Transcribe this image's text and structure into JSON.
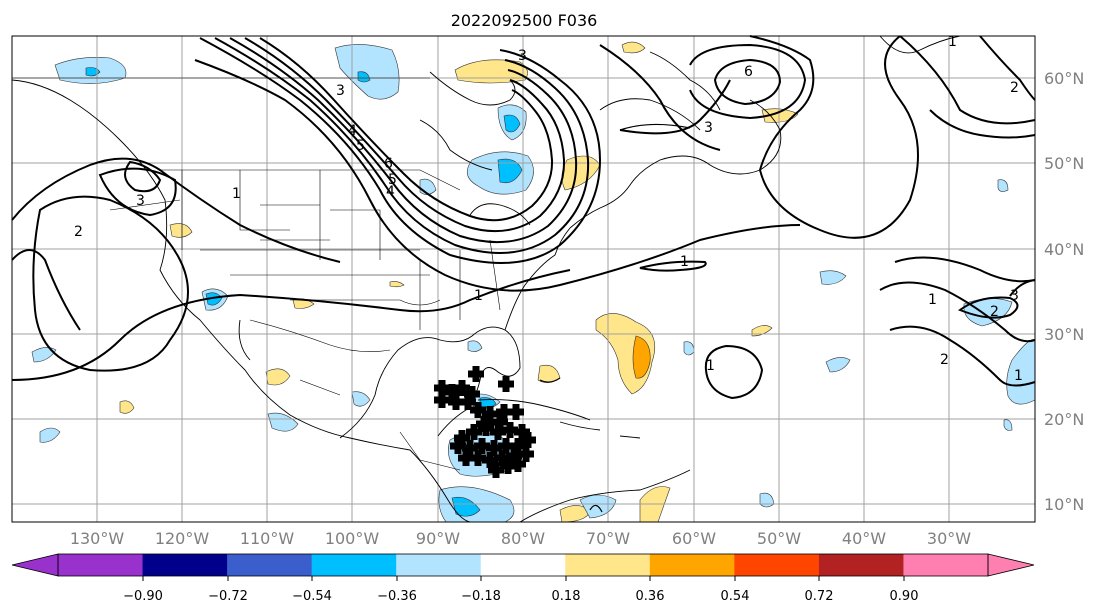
{
  "title": "2022092500 F036",
  "map": {
    "lat_labels": [
      "60°N",
      "50°N",
      "40°N",
      "30°N",
      "20°N",
      "10°N"
    ],
    "lon_labels": [
      "130°W",
      "120°W",
      "110°W",
      "100°W",
      "90°W",
      "80°W",
      "70°W",
      "60°W",
      "50°W",
      "40°W",
      "30°W"
    ],
    "contour_labels": [
      "3",
      "4",
      "5",
      "6",
      "6",
      "5",
      "4",
      "3",
      "3",
      "2",
      "2",
      "1",
      "1",
      "1",
      "1",
      "1",
      "2",
      "3",
      "2",
      "3",
      "1",
      "1"
    ]
  },
  "colorbar": {
    "tick_labels": [
      "−0.90",
      "−0.72",
      "−0.54",
      "−0.36",
      "−0.18",
      "0.18",
      "0.36",
      "0.54",
      "0.72",
      "0.90"
    ],
    "colors": [
      "#9932cc",
      "#00008b",
      "#3a5fcd",
      "#00bfff",
      "#b2e3ff",
      "#ffffff",
      "#ffe68a",
      "#ffa500",
      "#ff4500",
      "#b22222",
      "#ff80b0",
      "#ff80b0"
    ]
  }
}
